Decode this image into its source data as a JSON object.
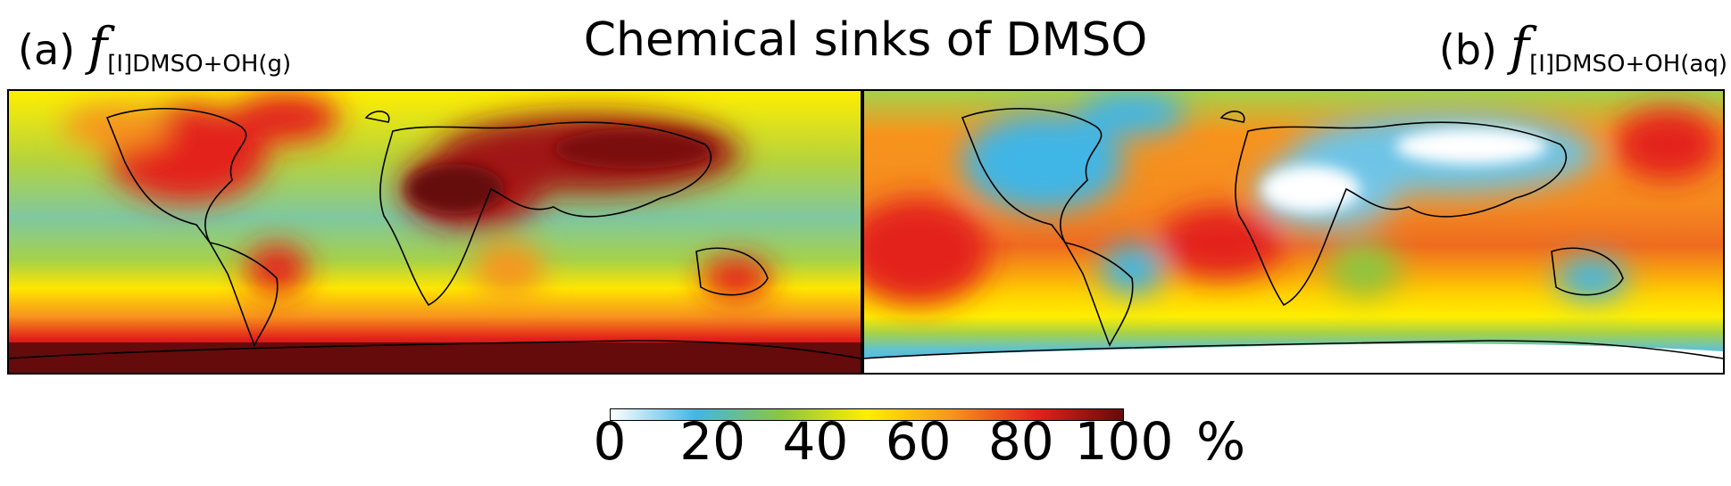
{
  "chart_data": {
    "type": "heatmap",
    "title": "Chemical sinks of DMSO",
    "panels": [
      {
        "label": "(a)",
        "quantity_symbol": "f",
        "quantity_subscript": "[I]DMSO+OH(g)",
        "pattern": "high (80–100%) over continents (N. Africa, Arabia, central Asia, N. America, Australia, S. America interior) and Antarctica; ~40–60% over oceans"
      },
      {
        "label": "(b)",
        "quantity_symbol": "f",
        "quantity_subscript": "[I]DMSO+OH(aq)",
        "pattern": "high (60–90%) over oceans; low (0–20%) over dry continents and Antarctica"
      }
    ],
    "colorbar": {
      "ticks": [
        "0",
        "20",
        "40",
        "60",
        "80",
        "100"
      ],
      "unit": "%",
      "range": [
        0,
        100
      ],
      "colormap": [
        "#ffffff",
        "#41b6e6",
        "#8cc63f",
        "#ffee00",
        "#f7941d",
        "#e3201b",
        "#650b0b"
      ]
    }
  }
}
